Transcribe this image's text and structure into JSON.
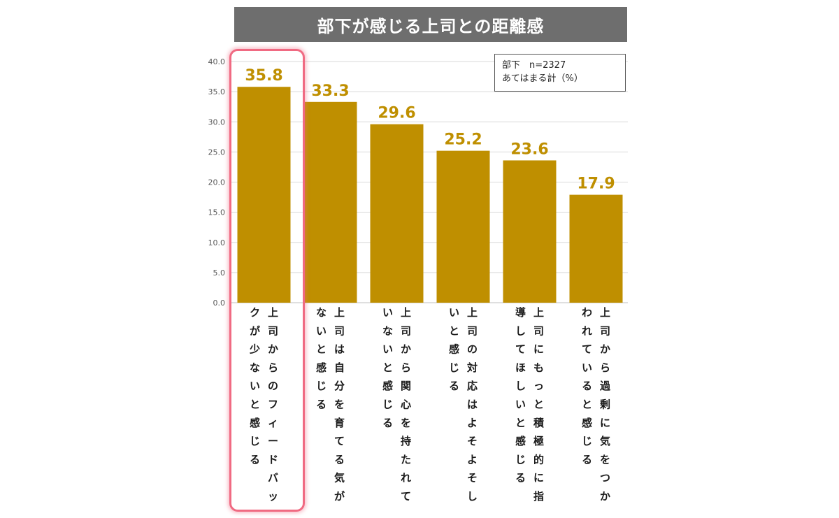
{
  "chart_data": {
    "type": "bar",
    "title": "部下が感じる上司との距離感",
    "legend": {
      "line1": "部下　n=2327",
      "line2": "あてはまる計（%）"
    },
    "ylim": [
      0,
      40
    ],
    "yticks": [
      "0.0",
      "5.0",
      "10.0",
      "15.0",
      "20.0",
      "25.0",
      "30.0",
      "35.0",
      "40.0"
    ],
    "categories": [
      "上司からのフィードバックが少ないと感じる",
      "上司は自分を育てる気がないと感じる",
      "上司から関心を持たれていないと感じる",
      "上司の対応はよそよそしいと感じる",
      "上司にもっと積極的に指導してほしいと感じる",
      "上司から過剰に気をつかわれていると感じる"
    ],
    "category_columns": [
      [
        "上司からのフィードバッ",
        "クが少ないと感じる"
      ],
      [
        "上司は自分を育てる気が",
        "ないと感じる"
      ],
      [
        "上司から関心を持たれて",
        "いないと感じる"
      ],
      [
        "上司の対応はよそよそし",
        "いと感じる"
      ],
      [
        "上司にもっと積極的に指",
        "導してほしいと感じる"
      ],
      [
        "上司から過剰に気をつか",
        "われていると感じる"
      ]
    ],
    "values": [
      35.8,
      33.3,
      29.6,
      25.2,
      23.6,
      17.9
    ],
    "value_labels": [
      "35.8",
      "33.3",
      "29.6",
      "25.2",
      "23.6",
      "17.9"
    ],
    "highlighted_index": 0,
    "colors": {
      "bar": "#bf8f00",
      "label": "#bf8f00",
      "title_bg": "#6e6e6e",
      "highlight": "#f06a82",
      "grid": "#d9d9d9"
    },
    "grid": true
  }
}
